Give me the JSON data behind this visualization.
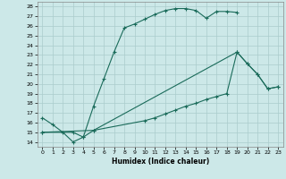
{
  "xlabel": "Humidex (Indice chaleur)",
  "bg_color": "#cce8e8",
  "grid_color": "#aacccc",
  "line_color": "#1a6b5a",
  "xlim": [
    -0.5,
    23.5
  ],
  "ylim": [
    13.5,
    28.5
  ],
  "xticks": [
    0,
    1,
    2,
    3,
    4,
    5,
    6,
    7,
    8,
    9,
    10,
    11,
    12,
    13,
    14,
    15,
    16,
    17,
    18,
    19,
    20,
    21,
    22,
    23
  ],
  "yticks": [
    14,
    15,
    16,
    17,
    18,
    19,
    20,
    21,
    22,
    23,
    24,
    25,
    26,
    27,
    28
  ],
  "line1_x": [
    0,
    1,
    2,
    3,
    4,
    5,
    6,
    7,
    8,
    9,
    10,
    11,
    12,
    13,
    14,
    15,
    16,
    17,
    18,
    19
  ],
  "line1_y": [
    16.5,
    15.8,
    15.0,
    14.0,
    14.5,
    17.7,
    20.5,
    23.3,
    25.8,
    26.2,
    26.7,
    27.2,
    27.6,
    27.8,
    27.8,
    27.6,
    26.8,
    27.5,
    27.5,
    27.4
  ],
  "line2_x": [
    0,
    5,
    10,
    11,
    12,
    13,
    14,
    15,
    16,
    17,
    18,
    19,
    20,
    21,
    22,
    23
  ],
  "line2_y": [
    15.0,
    15.2,
    16.2,
    16.5,
    16.9,
    17.3,
    17.7,
    18.0,
    18.4,
    18.7,
    19.0,
    23.3,
    22.1,
    21.0,
    19.5,
    19.7
  ],
  "line3_x": [
    0,
    3,
    4,
    5,
    19,
    20,
    21,
    22,
    23
  ],
  "line3_y": [
    15.0,
    15.0,
    14.5,
    15.2,
    23.3,
    22.1,
    21.0,
    19.5,
    19.7
  ]
}
